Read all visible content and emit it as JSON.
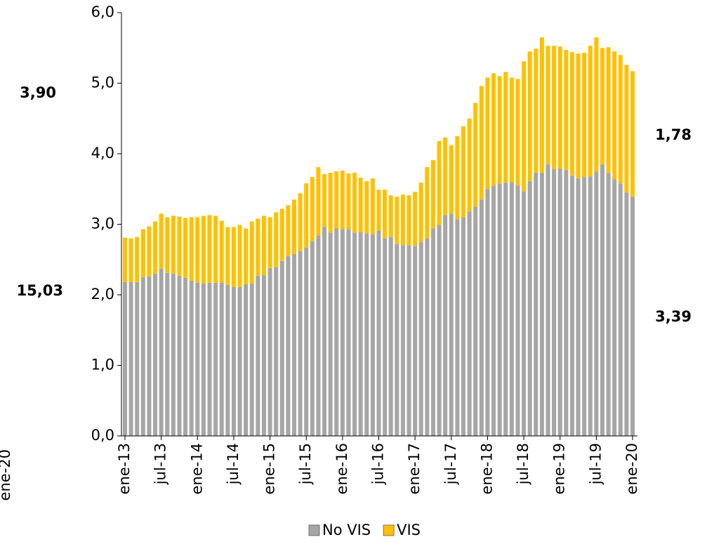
{
  "chart_data": {
    "type": "stacked-bar",
    "categories": [
      "ene-13",
      null,
      null,
      null,
      null,
      null,
      "jul-13",
      null,
      null,
      null,
      null,
      null,
      "ene-14",
      null,
      null,
      null,
      null,
      null,
      "jul-14",
      null,
      null,
      null,
      null,
      null,
      "ene-15",
      null,
      null,
      null,
      null,
      null,
      "jul-15",
      null,
      null,
      null,
      null,
      null,
      "ene-16",
      null,
      null,
      null,
      null,
      null,
      "jul-16",
      null,
      null,
      null,
      null,
      null,
      "ene-17",
      null,
      null,
      null,
      null,
      null,
      "jul-17",
      null,
      null,
      null,
      null,
      null,
      "ene-18",
      null,
      null,
      null,
      null,
      null,
      "jul-18",
      null,
      null,
      null,
      null,
      null,
      "ene-19",
      null,
      null,
      null,
      null,
      null,
      "jul-19",
      null,
      null,
      null,
      null,
      null,
      "ene-20"
    ],
    "series": [
      {
        "name": "No VIS",
        "color": "#a6a6a6",
        "values": [
          2.18,
          2.18,
          2.18,
          2.25,
          2.26,
          2.3,
          2.37,
          2.31,
          2.3,
          2.27,
          2.24,
          2.2,
          2.17,
          2.16,
          2.17,
          2.17,
          2.17,
          2.14,
          2.11,
          2.11,
          2.15,
          2.16,
          2.27,
          2.28,
          2.38,
          2.39,
          2.48,
          2.55,
          2.58,
          2.62,
          2.67,
          2.76,
          2.84,
          2.96,
          2.88,
          2.94,
          2.93,
          2.93,
          2.88,
          2.89,
          2.87,
          2.86,
          2.91,
          2.8,
          2.82,
          2.72,
          2.7,
          2.7,
          2.69,
          2.75,
          2.8,
          2.94,
          2.99,
          3.13,
          3.15,
          3.07,
          3.1,
          3.18,
          3.25,
          3.35,
          3.5,
          3.55,
          3.58,
          3.59,
          3.6,
          3.55,
          3.47,
          3.61,
          3.73,
          3.73,
          3.85,
          3.78,
          3.79,
          3.77,
          3.69,
          3.65,
          3.67,
          3.68,
          3.75,
          3.85,
          3.73,
          3.64,
          3.58,
          3.45,
          3.39
        ]
      },
      {
        "name": "VIS",
        "color": "#ffc000",
        "values": [
          0.63,
          0.62,
          0.64,
          0.68,
          0.71,
          0.74,
          0.78,
          0.79,
          0.82,
          0.84,
          0.85,
          0.9,
          0.93,
          0.96,
          0.96,
          0.95,
          0.88,
          0.82,
          0.85,
          0.88,
          0.79,
          0.88,
          0.81,
          0.84,
          0.72,
          0.78,
          0.74,
          0.72,
          0.77,
          0.82,
          0.91,
          0.91,
          0.97,
          0.75,
          0.85,
          0.81,
          0.83,
          0.79,
          0.85,
          0.77,
          0.74,
          0.79,
          0.58,
          0.69,
          0.59,
          0.67,
          0.72,
          0.71,
          0.77,
          0.84,
          1.01,
          0.97,
          1.19,
          1.1,
          0.97,
          1.18,
          1.29,
          1.32,
          1.47,
          1.61,
          1.58,
          1.59,
          1.52,
          1.57,
          1.48,
          1.51,
          1.84,
          1.84,
          1.76,
          1.92,
          1.68,
          1.75,
          1.73,
          1.7,
          1.75,
          1.77,
          1.76,
          1.85,
          1.9,
          1.65,
          1.78,
          1.81,
          1.82,
          1.81,
          1.78
        ]
      }
    ],
    "ylim": [
      0,
      6
    ],
    "yticks": [
      {
        "value": 0,
        "label": "0,0"
      },
      {
        "value": 1,
        "label": "1,0"
      },
      {
        "value": 2,
        "label": "2,0"
      },
      {
        "value": 3,
        "label": "3,0"
      },
      {
        "value": 4,
        "label": "4,0"
      },
      {
        "value": 5,
        "label": "5,0"
      },
      {
        "value": 6,
        "label": "6,0"
      }
    ],
    "annotations": [
      {
        "text": "3,90",
        "color": "#c00000"
      },
      {
        "text": "15,03",
        "color": "#595959"
      },
      {
        "text": "1,78",
        "color": "#ffc000"
      },
      {
        "text": "3,39",
        "color": "#595959"
      },
      {
        "text": "ene-20",
        "color": "#000000"
      }
    ],
    "legend": "bottom"
  }
}
